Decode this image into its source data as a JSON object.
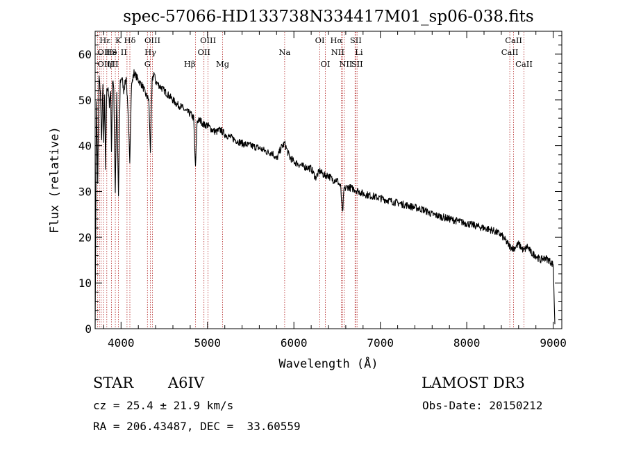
{
  "chart_data": {
    "type": "line",
    "title": "spec-57066-HD133738N334417M01_sp06-038.fits",
    "xlabel": "Wavelength (Å)",
    "ylabel": "Flux (relative)",
    "xlim": [
      3700,
      9100
    ],
    "ylim": [
      0,
      65
    ],
    "xticks": [
      4000,
      5000,
      6000,
      7000,
      8000,
      9000
    ],
    "yticks": [
      0,
      10,
      20,
      30,
      40,
      50,
      60
    ],
    "grid": false,
    "series": [
      {
        "name": "spectrum",
        "x": [
          3700,
          3715,
          3730,
          3745,
          3760,
          3775,
          3790,
          3798,
          3810,
          3820,
          3835,
          3850,
          3865,
          3880,
          3889,
          3900,
          3915,
          3933,
          3950,
          3970,
          3990,
          4010,
          4030,
          4060,
          4080,
          4101,
          4120,
          4150,
          4180,
          4210,
          4250,
          4290,
          4320,
          4340,
          4360,
          4380,
          4400,
          4450,
          4500,
          4550,
          4600,
          4650,
          4700,
          4750,
          4800,
          4840,
          4861,
          4880,
          4920,
          4960,
          5000,
          5050,
          5100,
          5150,
          5200,
          5300,
          5400,
          5500,
          5600,
          5700,
          5750,
          5800,
          5850,
          5893,
          5950,
          6000,
          6100,
          6200,
          6250,
          6300,
          6350,
          6400,
          6450,
          6500,
          6540,
          6563,
          6580,
          6620,
          6700,
          6800,
          6900,
          7000,
          7100,
          7200,
          7300,
          7400,
          7500,
          7600,
          7700,
          7800,
          7900,
          8000,
          8100,
          8200,
          8300,
          8400,
          8498,
          8542,
          8600,
          8662,
          8700,
          8750,
          8800,
          8850,
          8900,
          8950,
          9000,
          9020
        ],
        "y": [
          0,
          50,
          32,
          55,
          52,
          41,
          54,
          40,
          51,
          35,
          53,
          52,
          49,
          52,
          38,
          54,
          53,
          30,
          51,
          29,
          54,
          55,
          52,
          55,
          47,
          37,
          53,
          56,
          55,
          54,
          53,
          51,
          50,
          39,
          54,
          56,
          54,
          53,
          52,
          51,
          50,
          49,
          48.5,
          47.5,
          47,
          46,
          35,
          45.5,
          45.5,
          44.5,
          44.5,
          43.5,
          43,
          43.5,
          42.5,
          41.5,
          40.5,
          40,
          39.5,
          38.5,
          38.5,
          37,
          39.5,
          40.5,
          37.5,
          36.5,
          35.5,
          35,
          33,
          34.5,
          33.5,
          33.5,
          32.5,
          32.5,
          31,
          25,
          30.5,
          31,
          30.5,
          29.5,
          29,
          28.5,
          28,
          27.5,
          27,
          26.5,
          26,
          25,
          24.5,
          24,
          23.5,
          23,
          22.5,
          22,
          21.5,
          20.5,
          18,
          17.5,
          18.5,
          17,
          18,
          16.5,
          16,
          15,
          15.5,
          15,
          14,
          1
        ]
      }
    ],
    "lines": [
      {
        "label": "Hε",
        "wavelength": 3750,
        "row": 0,
        "anchor": "start"
      },
      {
        "label": "K",
        "wavelength": 3934,
        "row": 0,
        "anchor": "start"
      },
      {
        "label": "Hδ",
        "wavelength": 4102,
        "row": 0,
        "anchor": "middle"
      },
      {
        "label": "OIII",
        "wavelength": 4363,
        "row": 0,
        "anchor": "middle"
      },
      {
        "label": "OIII",
        "wavelength": 5007,
        "row": 0,
        "anchor": "middle"
      },
      {
        "label": "OI",
        "wavelength": 6300,
        "row": 0,
        "anchor": "middle"
      },
      {
        "label": "Hα",
        "wavelength": 6563,
        "row": 0,
        "anchor": "end"
      },
      {
        "label": "SII",
        "wavelength": 6716,
        "row": 0,
        "anchor": "middle"
      },
      {
        "label": "CaII",
        "wavelength": 8542,
        "row": 0,
        "anchor": "middle"
      },
      {
        "label": "OII",
        "wavelength": 3727,
        "row": 1,
        "anchor": "start"
      },
      {
        "label": "He",
        "wavelength": 3820,
        "row": 1,
        "anchor": "start"
      },
      {
        "label": "S",
        "wavelength": 3889,
        "row": 1,
        "anchor": "start"
      },
      {
        "label": "II",
        "wavelength": 4069,
        "row": 1,
        "anchor": "end"
      },
      {
        "label": "Hγ",
        "wavelength": 4340,
        "row": 1,
        "anchor": "middle"
      },
      {
        "label": "OII",
        "wavelength": 4959,
        "row": 1,
        "anchor": "middle"
      },
      {
        "label": "Na",
        "wavelength": 5893,
        "row": 1,
        "anchor": "middle"
      },
      {
        "label": "NII",
        "wavelength": 6584,
        "row": 1,
        "anchor": "end"
      },
      {
        "label": "Li",
        "wavelength": 6708,
        "row": 1,
        "anchor": "start"
      },
      {
        "label": "CaII",
        "wavelength": 8498,
        "row": 1,
        "anchor": "middle"
      },
      {
        "label": "OIII",
        "wavelength": 3727,
        "row": 2,
        "anchor": "start"
      },
      {
        "label": "η",
        "wavelength": 3835,
        "row": 2,
        "anchor": "start"
      },
      {
        "label": "II",
        "wavelength": 3970,
        "row": 2,
        "anchor": "end"
      },
      {
        "label": "G",
        "wavelength": 4305,
        "row": 2,
        "anchor": "middle"
      },
      {
        "label": "Hβ",
        "wavelength": 4861,
        "row": 2,
        "anchor": "end"
      },
      {
        "label": "Mg",
        "wavelength": 5175,
        "row": 2,
        "anchor": "middle"
      },
      {
        "label": "OI",
        "wavelength": 6364,
        "row": 2,
        "anchor": "middle"
      },
      {
        "label": "NII",
        "wavelength": 6600,
        "row": 2,
        "anchor": "middle"
      },
      {
        "label": "SII",
        "wavelength": 6731,
        "row": 2,
        "anchor": "middle"
      },
      {
        "label": "CaII",
        "wavelength": 8662,
        "row": 2,
        "anchor": "middle"
      }
    ],
    "line_markers": [
      3727,
      3750,
      3770,
      3798,
      3835,
      3889,
      3934,
      3970,
      4069,
      4102,
      4305,
      4340,
      4363,
      4861,
      4959,
      5007,
      5175,
      5893,
      6300,
      6364,
      6548,
      6563,
      6584,
      6708,
      6716,
      6731,
      8498,
      8542,
      8662
    ],
    "colors": {
      "spectrum": "#000000",
      "markers": "#b22222",
      "axes": "#000000",
      "background": "#ffffff"
    }
  },
  "info": {
    "class": "STAR",
    "subclass": "A6IV",
    "survey": "LAMOST DR3",
    "cz": "cz = 25.4 ± 21.9 km/s",
    "obs_date": "Obs-Date: 20150212",
    "radec": "RA = 206.43487, DEC =  33.60559"
  }
}
